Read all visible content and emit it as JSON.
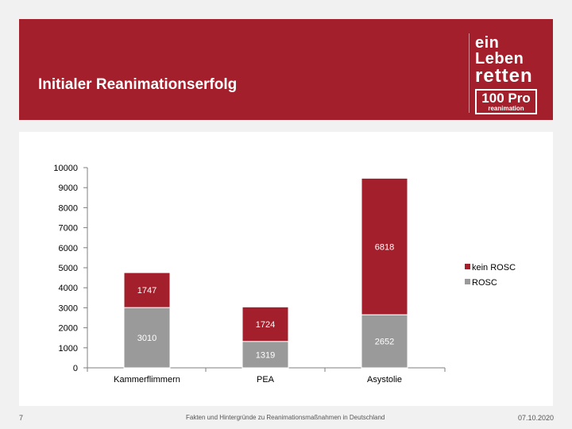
{
  "header": {
    "title": "Initialer Reanimationserfolg",
    "logo_line1": "ein Leben",
    "logo_line2": "retten",
    "logo_box_line1": "100 Pro",
    "logo_box_line2": "reanimation"
  },
  "footer": {
    "slide_number": "7",
    "text": "Fakten und Hintergründe zu Reanimationsmaßnahmen in Deutschland",
    "date": "07.10.2020"
  },
  "colors": {
    "brand": "#a31f2c",
    "rosc": "#9a9a9a",
    "kein_rosc": "#a31f2c"
  },
  "chart_data": {
    "type": "bar",
    "stacked": true,
    "categories": [
      "Kammerflimmern",
      "PEA",
      "Asystolie"
    ],
    "series": [
      {
        "name": "ROSC",
        "values": [
          3010,
          1319,
          2652
        ]
      },
      {
        "name": "kein ROSC",
        "values": [
          1747,
          1724,
          6818
        ]
      }
    ],
    "ylim": [
      0,
      10000
    ],
    "yticks": [
      0,
      1000,
      2000,
      3000,
      4000,
      5000,
      6000,
      7000,
      8000,
      9000,
      10000
    ],
    "legend_position": "right",
    "grid": false
  }
}
